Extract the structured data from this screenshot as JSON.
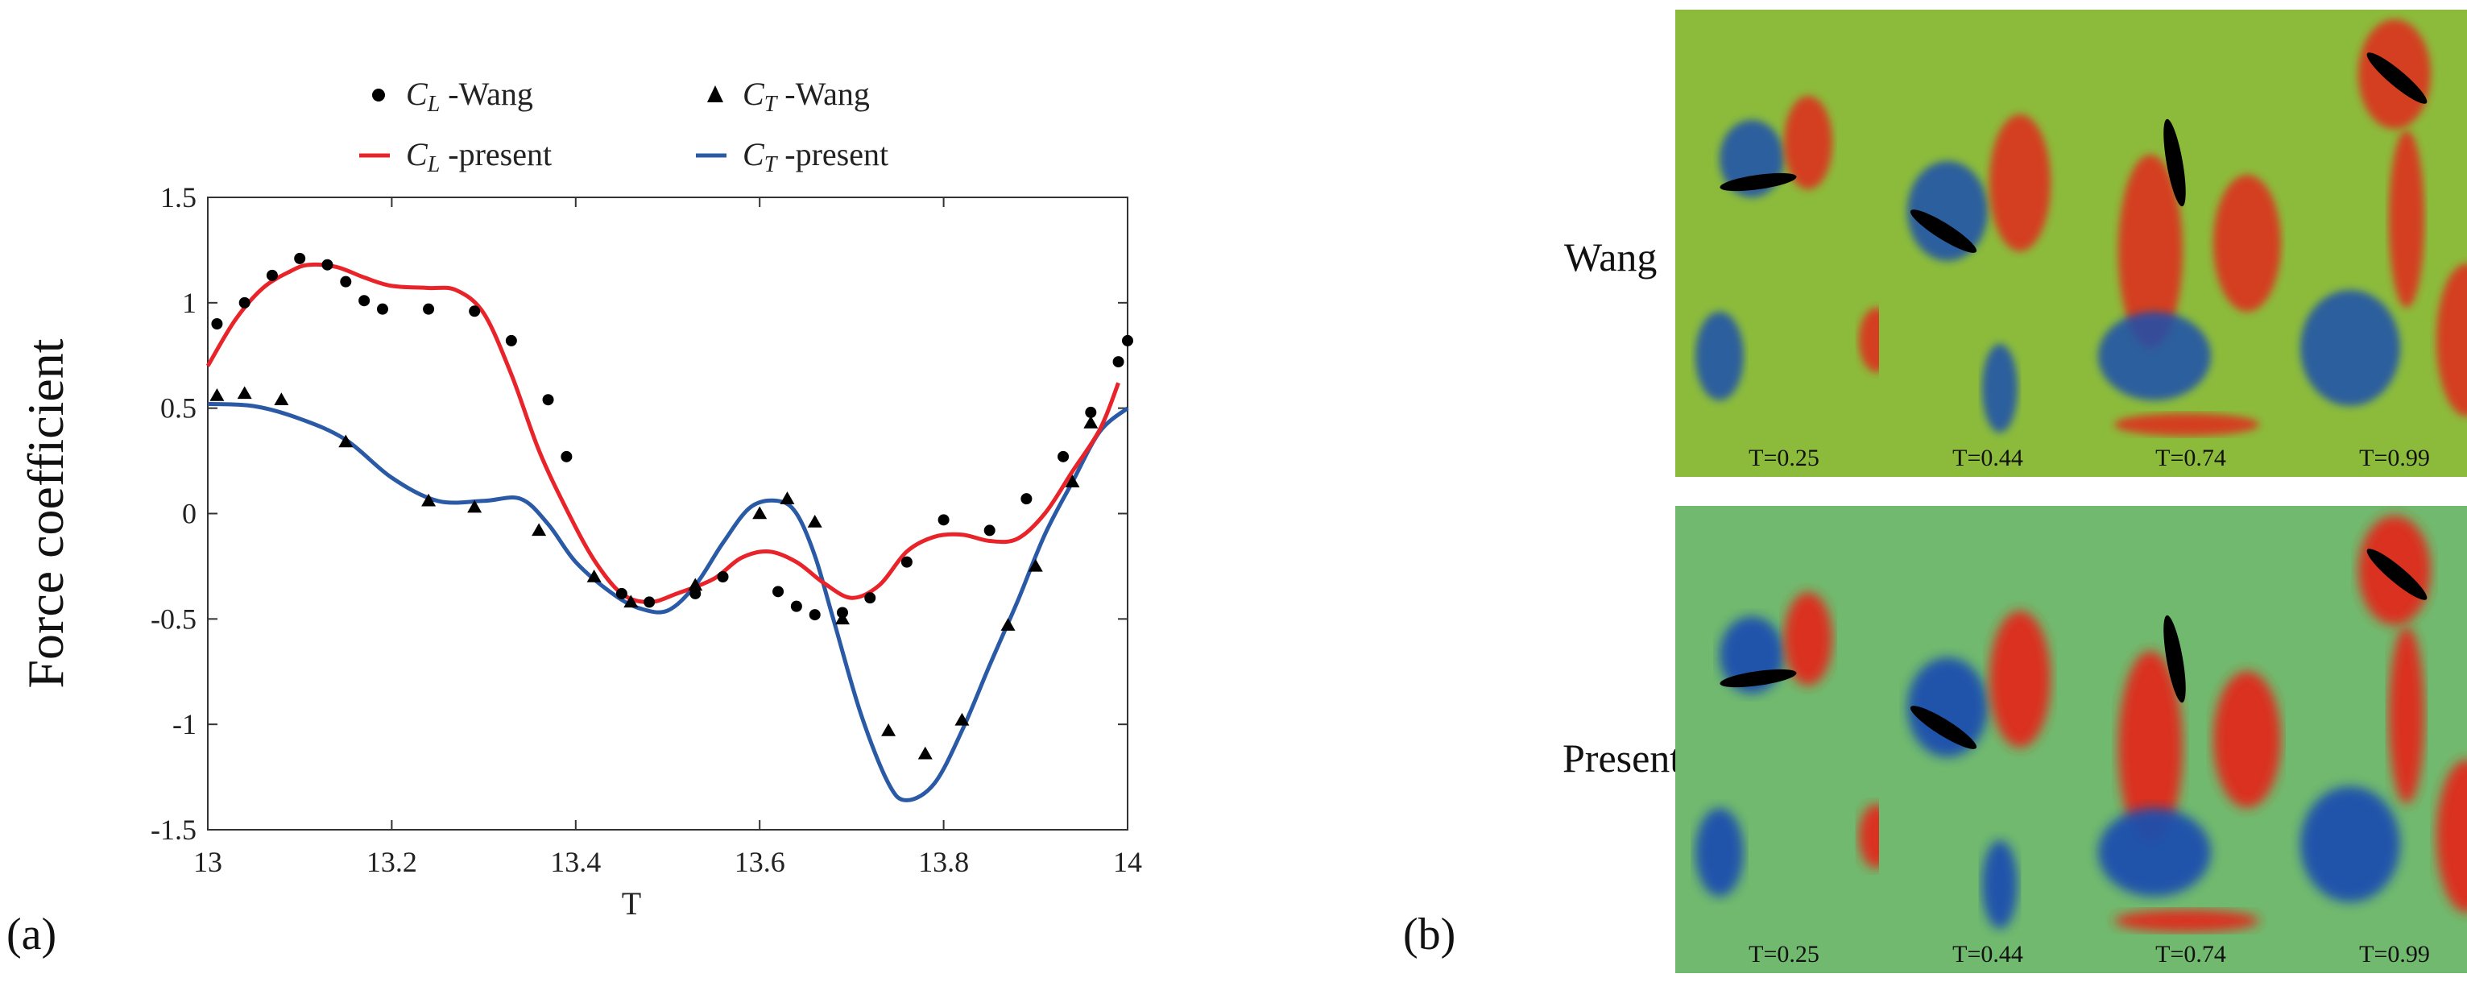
{
  "panel_a_label": "(a)",
  "panel_b_label": "(b)",
  "chart_data": {
    "type": "line",
    "xlabel": "T",
    "ylabel": "Force coefficient",
    "xlim": [
      13,
      14
    ],
    "ylim": [
      -1.5,
      1.5
    ],
    "x_ticks": [
      "13",
      "13.2",
      "13.4",
      "13.6",
      "13.8",
      "14"
    ],
    "y_ticks": [
      "1.5",
      "1",
      "0.5",
      "0",
      "-0.5",
      "-1",
      "-1.5"
    ],
    "legend": [
      {
        "key": "cl_wang",
        "sym": "C",
        "sub": "L",
        "text": "-Wang",
        "marker": "circle"
      },
      {
        "key": "ct_wang",
        "sym": "C",
        "sub": "T",
        "text": "-Wang",
        "marker": "triangle"
      },
      {
        "key": "cl_present",
        "sym": "C",
        "sub": "L",
        "text": "-present",
        "marker": "line"
      },
      {
        "key": "ct_present",
        "sym": "C",
        "sub": "T",
        "text": "-present",
        "marker": "line"
      }
    ],
    "colors": {
      "cl_present": "#e8232a",
      "ct_present": "#2a5aa5",
      "marker": "#000000"
    },
    "series": {
      "cl_wang": {
        "x": [
          13.01,
          13.04,
          13.07,
          13.1,
          13.13,
          13.15,
          13.17,
          13.19,
          13.24,
          13.29,
          13.33,
          13.37,
          13.39,
          13.45,
          13.48,
          13.53,
          13.56,
          13.62,
          13.64,
          13.66,
          13.69,
          13.72,
          13.76,
          13.8,
          13.85,
          13.89,
          13.93,
          13.96,
          13.99,
          14.0
        ],
        "y": [
          0.9,
          1.0,
          1.13,
          1.21,
          1.18,
          1.1,
          1.01,
          0.97,
          0.97,
          0.96,
          0.82,
          0.54,
          0.27,
          -0.38,
          -0.42,
          -0.38,
          -0.3,
          -0.37,
          -0.44,
          -0.48,
          -0.47,
          -0.4,
          -0.23,
          -0.03,
          -0.08,
          0.07,
          0.27,
          0.48,
          0.72,
          0.82
        ]
      },
      "ct_wang": {
        "x": [
          13.01,
          13.04,
          13.08,
          13.15,
          13.24,
          13.29,
          13.36,
          13.42,
          13.46,
          13.53,
          13.6,
          13.63,
          13.66,
          13.69,
          13.74,
          13.78,
          13.82,
          13.87,
          13.9,
          13.94,
          13.96
        ],
        "y": [
          0.56,
          0.57,
          0.54,
          0.34,
          0.06,
          0.03,
          -0.08,
          -0.3,
          -0.42,
          -0.34,
          0.0,
          0.07,
          -0.04,
          -0.5,
          -1.03,
          -1.14,
          -0.98,
          -0.53,
          -0.25,
          0.15,
          0.43
        ]
      },
      "cl_present": {
        "x": [
          13.0,
          13.03,
          13.06,
          13.09,
          13.11,
          13.14,
          13.17,
          13.2,
          13.24,
          13.27,
          13.3,
          13.33,
          13.36,
          13.39,
          13.42,
          13.45,
          13.48,
          13.51,
          13.55,
          13.58,
          13.61,
          13.64,
          13.67,
          13.7,
          13.73,
          13.76,
          13.79,
          13.82,
          13.85,
          13.88,
          13.91,
          13.94,
          13.97,
          13.99
        ],
        "y": [
          0.7,
          0.92,
          1.07,
          1.15,
          1.18,
          1.17,
          1.12,
          1.08,
          1.07,
          1.06,
          0.95,
          0.66,
          0.3,
          0.02,
          -0.22,
          -0.38,
          -0.42,
          -0.38,
          -0.31,
          -0.21,
          -0.18,
          -0.23,
          -0.33,
          -0.4,
          -0.34,
          -0.18,
          -0.11,
          -0.1,
          -0.13,
          -0.12,
          0.0,
          0.2,
          0.4,
          0.62
        ]
      },
      "ct_present": {
        "x": [
          13.0,
          13.05,
          13.1,
          13.15,
          13.2,
          13.25,
          13.3,
          13.34,
          13.37,
          13.4,
          13.44,
          13.47,
          13.5,
          13.53,
          13.56,
          13.59,
          13.62,
          13.64,
          13.66,
          13.68,
          13.71,
          13.74,
          13.76,
          13.79,
          13.82,
          13.85,
          13.88,
          13.91,
          13.94,
          13.97,
          14.0
        ],
        "y": [
          0.52,
          0.51,
          0.45,
          0.35,
          0.17,
          0.06,
          0.06,
          0.07,
          -0.05,
          -0.23,
          -0.38,
          -0.45,
          -0.46,
          -0.34,
          -0.14,
          0.03,
          0.06,
          0.0,
          -0.2,
          -0.5,
          -0.95,
          -1.28,
          -1.36,
          -1.28,
          -1.03,
          -0.72,
          -0.42,
          -0.1,
          0.15,
          0.39,
          0.5
        ]
      }
    }
  },
  "panel_b": {
    "rows": [
      {
        "label": "Wang",
        "times": [
          "T=0.25",
          "T=0.44",
          "T=0.74",
          "T=0.99"
        ]
      },
      {
        "label": "Present",
        "times": [
          "T=0.25",
          "T=0.44",
          "T=0.74",
          "T=0.99"
        ]
      }
    ],
    "background_colors": {
      "wang": "#8cbb3c",
      "present": "#71b96e"
    }
  }
}
